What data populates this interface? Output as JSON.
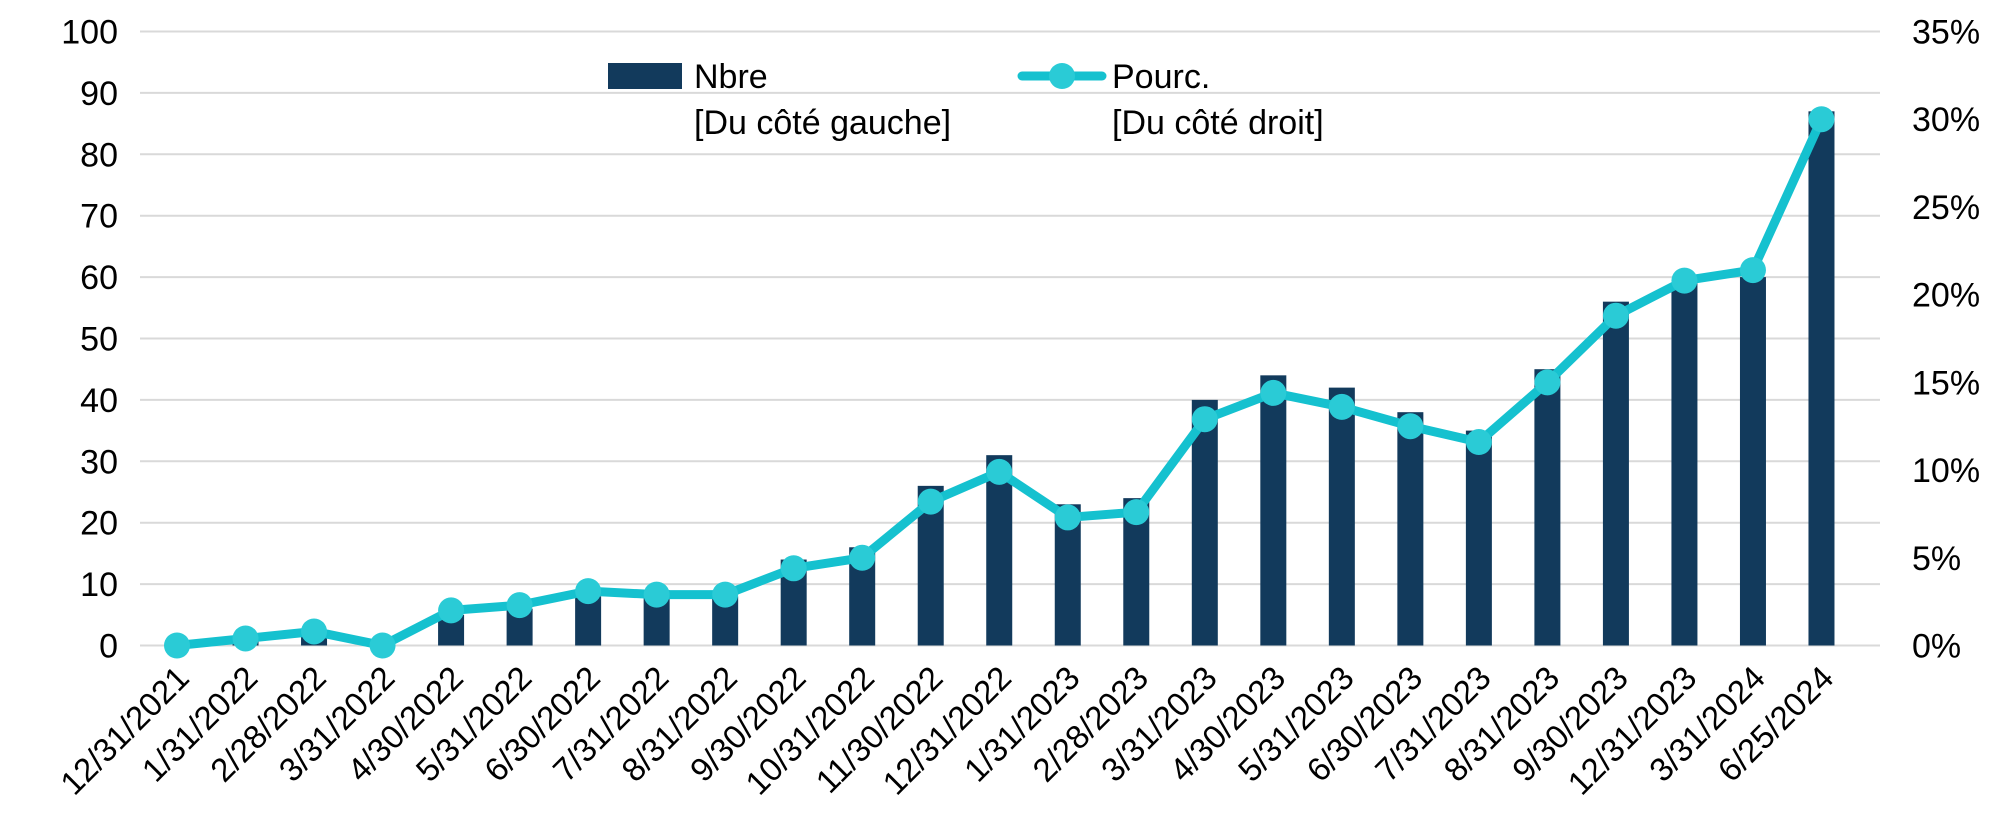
{
  "chart_data": {
    "type": "combo-bar-line",
    "title": "",
    "categories": [
      "12/31/2021",
      "1/31/2022",
      "2/28/2022",
      "3/31/2022",
      "4/30/2022",
      "5/31/2022",
      "6/30/2022",
      "7/31/2022",
      "8/31/2022",
      "9/30/2022",
      "10/31/2022",
      "11/30/2022",
      "12/31/2022",
      "1/31/2023",
      "2/28/2023",
      "3/31/2023",
      "4/30/2023",
      "5/31/2023",
      "6/30/2023",
      "7/31/2023",
      "8/31/2023",
      "9/30/2023",
      "12/31/2023",
      "3/31/2024",
      "6/25/2024"
    ],
    "series": [
      {
        "name": "Nbre",
        "sublabel": "[Du côté gauche]",
        "type": "bar",
        "axis": "left",
        "values": [
          0,
          1,
          2,
          0,
          5,
          6,
          8,
          9,
          8,
          14,
          16,
          26,
          31,
          23,
          24,
          40,
          44,
          42,
          38,
          35,
          45,
          56,
          59,
          60,
          87
        ]
      },
      {
        "name": "Pourc.",
        "sublabel": "[Du côté droit]",
        "type": "line",
        "axis": "right",
        "values": [
          0,
          0.4,
          0.8,
          0,
          2.0,
          2.3,
          3.1,
          2.9,
          2.9,
          4.4,
          5.0,
          8.2,
          9.9,
          7.3,
          7.6,
          12.9,
          14.4,
          13.6,
          12.5,
          11.6,
          15.0,
          18.8,
          20.8,
          21.4,
          30.0
        ]
      }
    ],
    "left_axis": {
      "min": 0,
      "max": 100,
      "step": 10,
      "labels": [
        "100",
        "90",
        "80",
        "70",
        "60",
        "50",
        "40",
        "30",
        "20",
        "10",
        "0"
      ]
    },
    "right_axis": {
      "min": 0,
      "max": 35,
      "step": 5,
      "labels": [
        "35%",
        "30%",
        "25%",
        "20%",
        "15%",
        "10%",
        "5%",
        "0%"
      ]
    },
    "grid": true,
    "legend_position": "top",
    "legend": {
      "items": [
        {
          "label": "Nbre",
          "sublabel": "[Du côté gauche]"
        },
        {
          "label": "Pourc.",
          "sublabel": "[Du côté droit]"
        }
      ]
    },
    "colors": {
      "bar": "#123A5C",
      "line": "#15C1CF",
      "marker": "#2ACBD6",
      "gridline": "#D9D9D9",
      "text": "#000000",
      "background": "#FFFFFF"
    }
  }
}
